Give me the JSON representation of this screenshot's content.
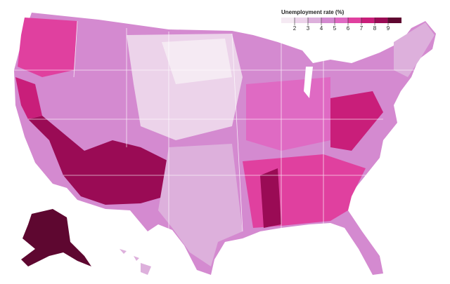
{
  "legend": {
    "title": "Unemployment rate (%)",
    "ticks": [
      2,
      3,
      4,
      5,
      6,
      7,
      8,
      9
    ],
    "colors": [
      "#f5eaf3",
      "#ecd3ea",
      "#ddb0dc",
      "#d48ad0",
      "#df6ac3",
      "#e0409f",
      "#c91e7a",
      "#9a0b55",
      "#5e0730"
    ]
  }
}
